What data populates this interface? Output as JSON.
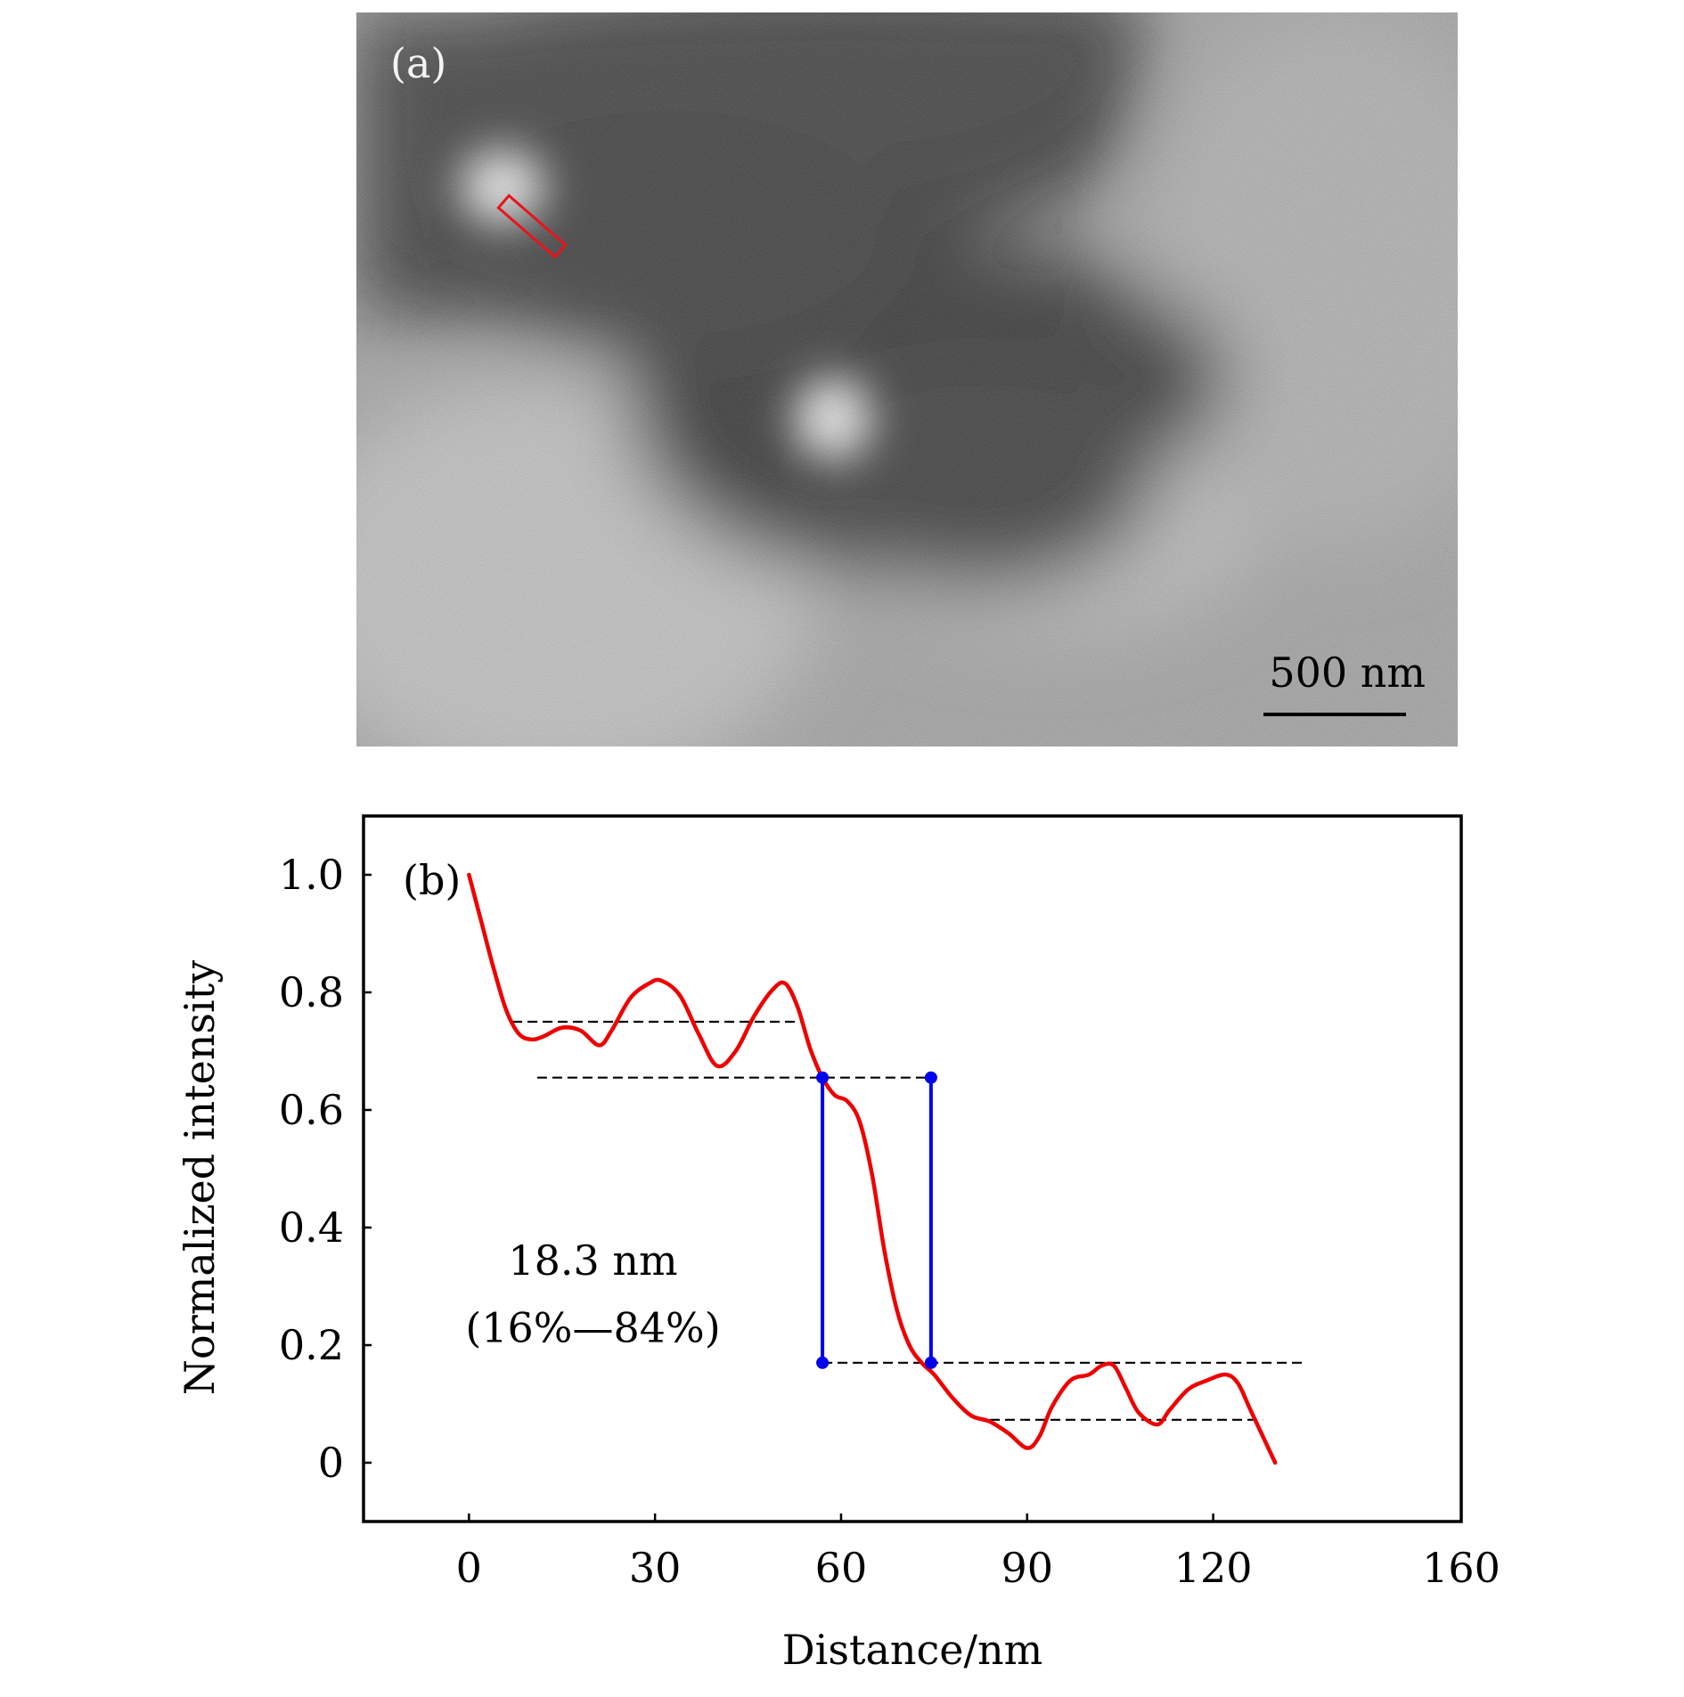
{
  "panel_a": {
    "label": "(a)",
    "scale_bar_text": "500 nm",
    "roi_color": "#e8141c"
  },
  "chart_data": {
    "type": "line",
    "panel_label": "(b)",
    "xlabel": "Distance/nm",
    "ylabel": "Normalized intensity",
    "xlim": [
      -17,
      160
    ],
    "ylim": [
      -0.1,
      1.1
    ],
    "xticks": [
      0,
      30,
      60,
      90,
      120,
      160
    ],
    "xtick_labels": [
      "0",
      "30",
      "60",
      "90",
      "120",
      "160"
    ],
    "yticks": [
      0,
      0.2,
      0.4,
      0.6,
      0.8,
      1.0
    ],
    "ytick_labels": [
      "0",
      "0.2",
      "0.4",
      "0.6",
      "0.8",
      "1.0"
    ],
    "series": [
      {
        "name": "intensity profile",
        "color": "#ee0000",
        "x": [
          0,
          2,
          4,
          6,
          8,
          10,
          12,
          15,
          18,
          21,
          23,
          26,
          29,
          31,
          34,
          37,
          40,
          43,
          46,
          49,
          51,
          53,
          55,
          57,
          59,
          61,
          63,
          65,
          67,
          69,
          71,
          73,
          75,
          78,
          81,
          84,
          87,
          90,
          92,
          94,
          97,
          100,
          102,
          104,
          106,
          108,
          111,
          113,
          116,
          119,
          122,
          124,
          126,
          128,
          130
        ],
        "y": [
          1.0,
          0.92,
          0.84,
          0.77,
          0.73,
          0.72,
          0.725,
          0.74,
          0.735,
          0.71,
          0.735,
          0.79,
          0.815,
          0.82,
          0.795,
          0.73,
          0.675,
          0.7,
          0.76,
          0.805,
          0.815,
          0.775,
          0.705,
          0.655,
          0.625,
          0.615,
          0.58,
          0.49,
          0.36,
          0.26,
          0.2,
          0.17,
          0.15,
          0.11,
          0.08,
          0.07,
          0.05,
          0.025,
          0.045,
          0.095,
          0.14,
          0.15,
          0.165,
          0.165,
          0.125,
          0.085,
          0.065,
          0.09,
          0.125,
          0.14,
          0.15,
          0.135,
          0.09,
          0.045,
          0.0
        ]
      }
    ],
    "reference_lines": [
      {
        "y": 0.75,
        "x_from": 7,
        "x_to": 54,
        "color": "#000000"
      },
      {
        "y": 0.655,
        "x_from": 11,
        "x_to": 74.5,
        "color": "#000000"
      },
      {
        "y": 0.17,
        "x_from": 57,
        "x_to": 135,
        "color": "#000000"
      },
      {
        "y": 0.073,
        "x_from": 84,
        "x_to": 128,
        "color": "#000000"
      }
    ],
    "width_markers": {
      "color": "#0000ee",
      "x_left": 57,
      "x_right": 74.5,
      "y_top": 0.655,
      "y_bottom": 0.17
    },
    "annotation": {
      "line1": "18.3 nm",
      "line2": "(16%—84%)"
    }
  }
}
